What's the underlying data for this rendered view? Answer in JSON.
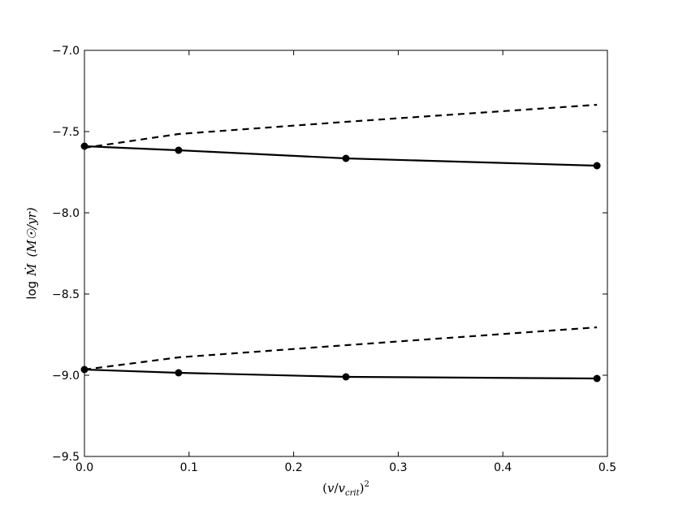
{
  "chart_data": {
    "type": "line",
    "xlabel": "(v/v_crit)^2",
    "xlabel_parts": {
      "open": "(",
      "v": "v",
      "slash": "/",
      "vcrit": "v",
      "sub": "crit",
      "close": ")",
      "sup": "2"
    },
    "ylabel": "log Ṁ (M☉/yr)",
    "ylabel_parts": {
      "log": "log",
      "mdot": "Ṁ",
      "unit": "(M☉/yr)"
    },
    "xlim": [
      0.0,
      0.5
    ],
    "ylim": [
      -9.5,
      -7.0
    ],
    "x_ticks": [
      0.0,
      0.1,
      0.2,
      0.3,
      0.4,
      0.5
    ],
    "x_tick_labels": [
      "0.0",
      "0.1",
      "0.2",
      "0.3",
      "0.4",
      "0.5"
    ],
    "y_ticks": [
      -7.0,
      -7.5,
      -8.0,
      -8.5,
      -9.0,
      -9.5
    ],
    "y_tick_labels": [
      "−7.0",
      "−7.5",
      "−8.0",
      "−8.5",
      "−9.0",
      "−9.5"
    ],
    "grid": false,
    "series": [
      {
        "style": "solid-markers",
        "x": [
          0.0,
          0.09,
          0.25,
          0.49
        ],
        "y": [
          -7.59,
          -7.615,
          -7.665,
          -7.71
        ]
      },
      {
        "style": "dashed",
        "x": [
          0.0,
          0.09,
          0.25,
          0.49
        ],
        "y": [
          -7.6,
          -7.515,
          -7.44,
          -7.335
        ]
      },
      {
        "style": "solid-markers",
        "x": [
          0.0,
          0.09,
          0.25,
          0.49
        ],
        "y": [
          -8.965,
          -8.985,
          -9.01,
          -9.02
        ]
      },
      {
        "style": "dashed",
        "x": [
          0.0,
          0.09,
          0.25,
          0.49
        ],
        "y": [
          -8.965,
          -8.89,
          -8.815,
          -8.705
        ]
      }
    ]
  }
}
